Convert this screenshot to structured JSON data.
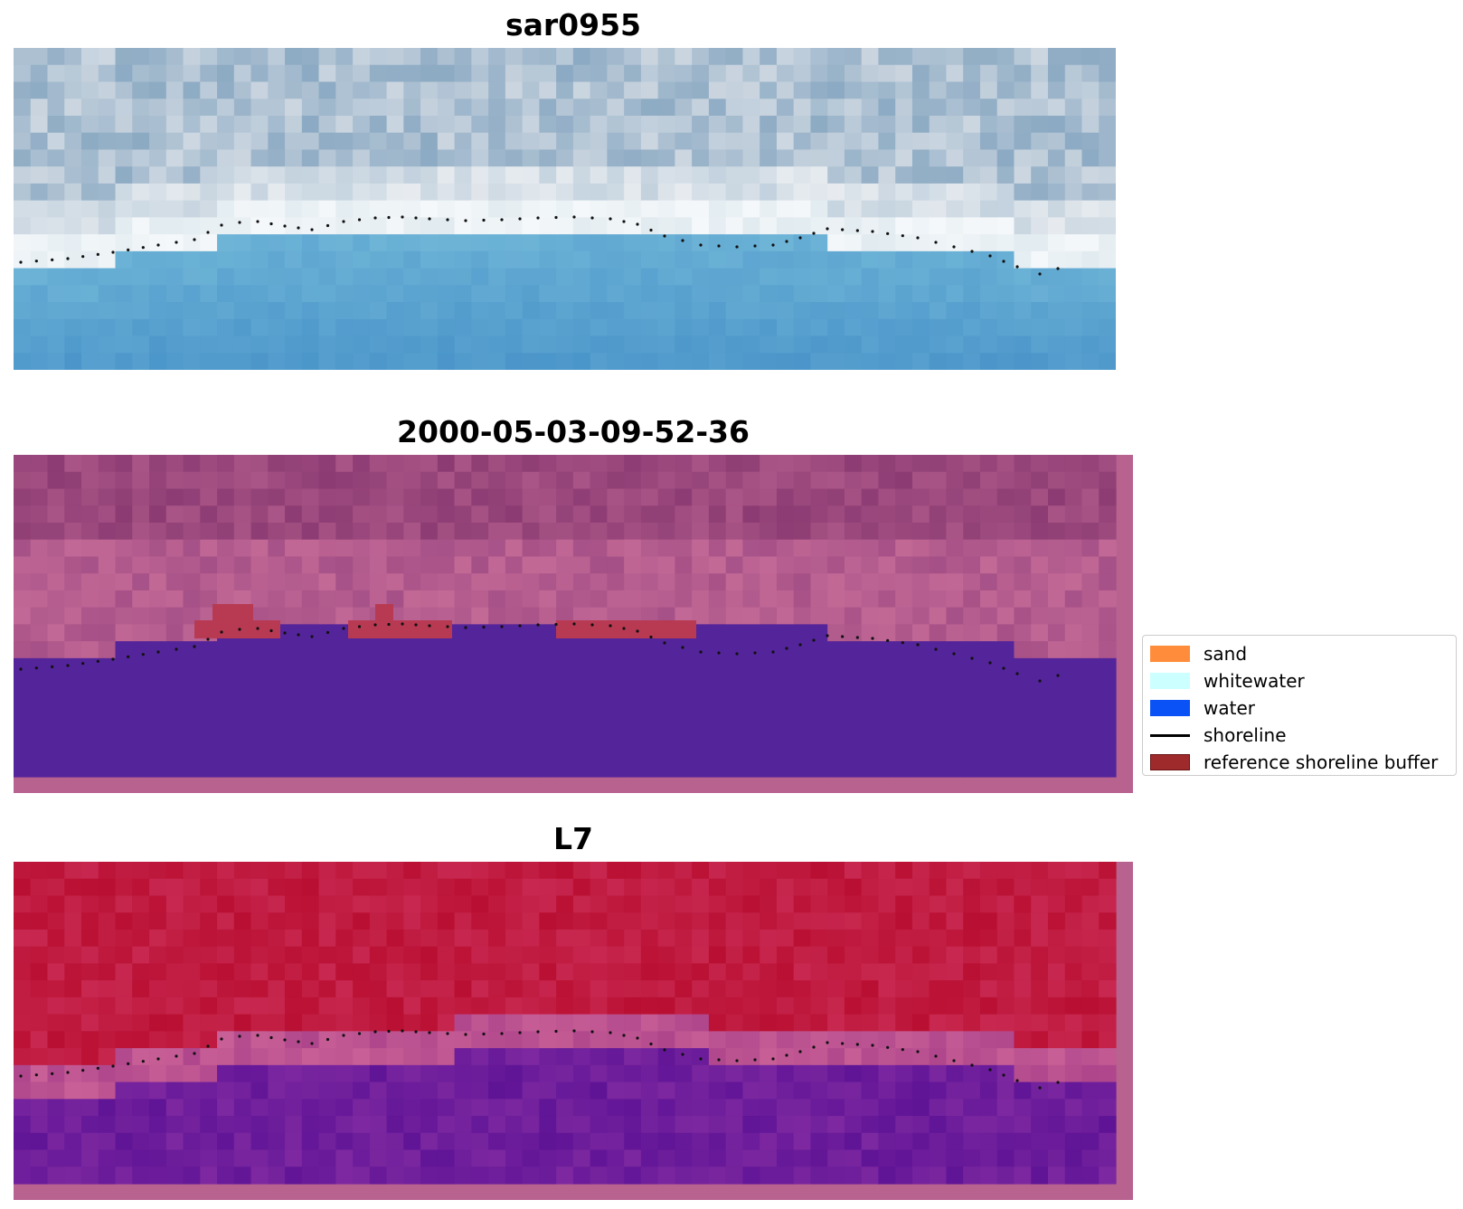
{
  "panels": [
    {
      "title": "sar0955",
      "kind": "rgb"
    },
    {
      "title": "2000-05-03-09-52-36",
      "kind": "classified"
    },
    {
      "title": "L7",
      "kind": "index"
    }
  ],
  "legend": {
    "items": [
      {
        "label": "sand",
        "type": "patch",
        "color": "#ff8c3a"
      },
      {
        "label": "whitewater",
        "type": "patch",
        "color": "#ccffff"
      },
      {
        "label": "water",
        "type": "patch",
        "color": "#0a52f5"
      },
      {
        "label": "shoreline",
        "type": "line",
        "color": "#000000"
      },
      {
        "label": "reference shoreline buffer",
        "type": "patch",
        "color": "#9e2a2b"
      }
    ]
  }
}
